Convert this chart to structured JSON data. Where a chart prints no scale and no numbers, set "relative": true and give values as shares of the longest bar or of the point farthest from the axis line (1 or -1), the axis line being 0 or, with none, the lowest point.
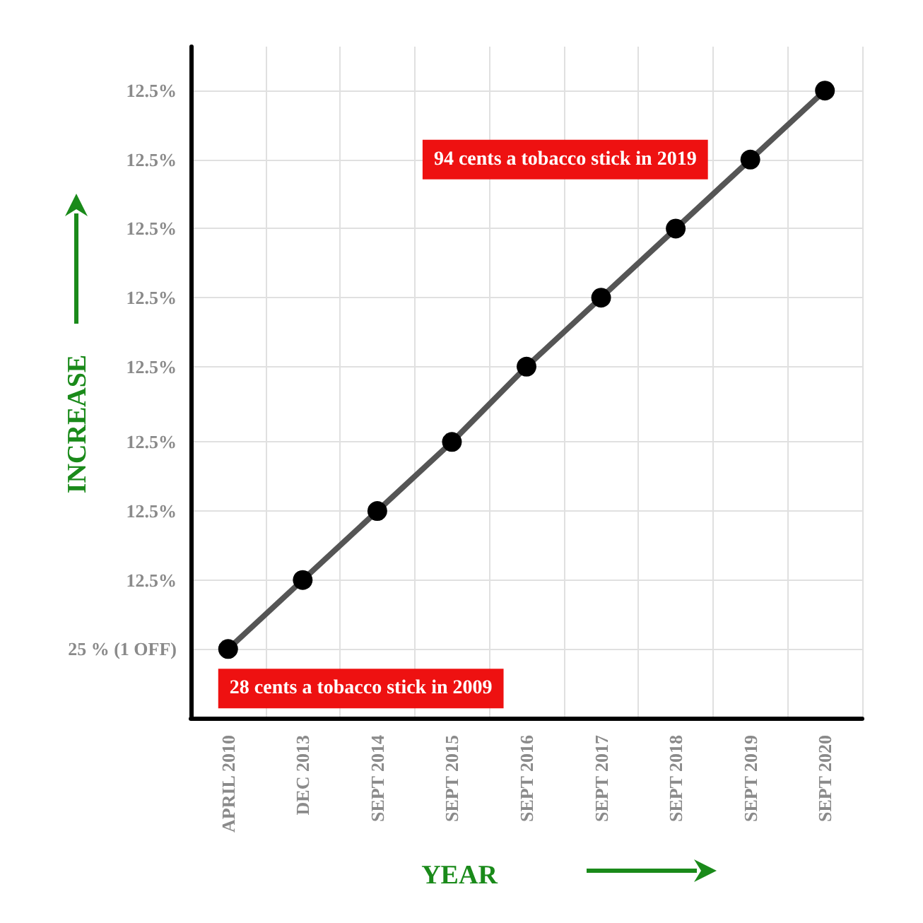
{
  "chart_data": {
    "type": "line",
    "xlabel": "YEAR",
    "ylabel": "INCREASE",
    "relative": true,
    "categories": [
      "APRIL 2010",
      "DEC 2013",
      "SEPT 2014",
      "SEPT 2015",
      "SEPT 2016",
      "SEPT 2017",
      "SEPT 2018",
      "SEPT 2019",
      "SEPT 2020"
    ],
    "series": [
      {
        "color": "#555555",
        "values": [
          0.11,
          0.22,
          0.33,
          0.44,
          0.56,
          0.67,
          0.78,
          0.89,
          1
        ]
      }
    ],
    "annotations": [
      "25 % (1 OFF)",
      "12.5%",
      "12.5%",
      "12.5%",
      "12.5%",
      "12.5%",
      "12.5%",
      "12.5%",
      "12.5%",
      {
        "text": "28 cents a tobacco stick in 2009",
        "x": "APRIL 2010",
        "y": 0.11
      },
      {
        "text": "94 cents a tobacco stick in 2019",
        "x": "SEPT 2019",
        "y": 0.89
      }
    ],
    "grid": true,
    "marker": "circle",
    "line_style": "solid"
  }
}
